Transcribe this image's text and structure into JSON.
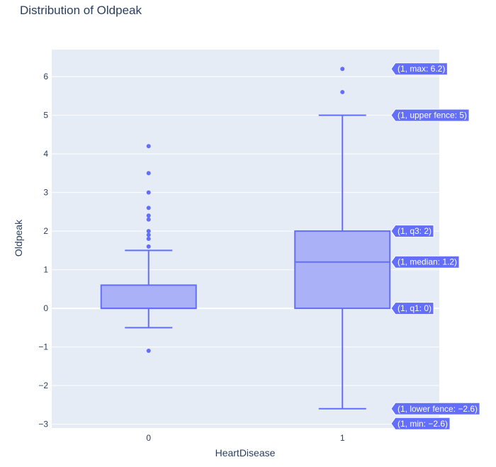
{
  "chart_data": {
    "type": "box",
    "title": "Distribution of Oldpeak",
    "xlabel": "HeartDisease",
    "ylabel": "Oldpeak",
    "ylim": [
      -3.1,
      6.7
    ],
    "yticks": [
      6,
      5,
      4,
      3,
      2,
      1,
      0,
      -1,
      -2,
      -3
    ],
    "ytick_labels": [
      "6",
      "5",
      "4",
      "3",
      "2",
      "1",
      "0",
      "−1",
      "−2",
      "−3"
    ],
    "categories": [
      "0",
      "1"
    ],
    "colors": {
      "plot_bg": "#e5ecf6",
      "grid": "#ffffff",
      "line": "#636efa",
      "fill": "#abb1f7",
      "text": "#2a3f5f",
      "tooltip_text": "#ffffff"
    },
    "boxes": [
      {
        "category": "0",
        "min": -1.1,
        "lower_fence": -0.5,
        "q1": 0,
        "median": 0,
        "q3": 0.6,
        "upper_fence": 1.5,
        "max": 4.2,
        "outliers": [
          -1.1,
          1.6,
          1.8,
          1.9,
          2.0,
          2.3,
          2.4,
          2.6,
          3.0,
          3.5,
          4.2
        ]
      },
      {
        "category": "1",
        "min": -2.6,
        "lower_fence": -2.6,
        "q1": 0,
        "median": 1.2,
        "q3": 2,
        "upper_fence": 5,
        "max": 6.2,
        "outliers": [
          5.6,
          6.2
        ]
      }
    ],
    "tooltips": [
      {
        "text": "(1, max: 6.2)",
        "y": 6.2
      },
      {
        "text": "(1, upper fence: 5)",
        "y": 5
      },
      {
        "text": "(1, q3: 2)",
        "y": 2
      },
      {
        "text": "(1, median: 1.2)",
        "y": 1.2
      },
      {
        "text": "(1, q1: 0)",
        "y": 0
      },
      {
        "text": "(1, lower fence: −2.6)",
        "y": -2.6
      },
      {
        "text": "(1, min: −2.6)",
        "y": -2.6
      }
    ]
  }
}
